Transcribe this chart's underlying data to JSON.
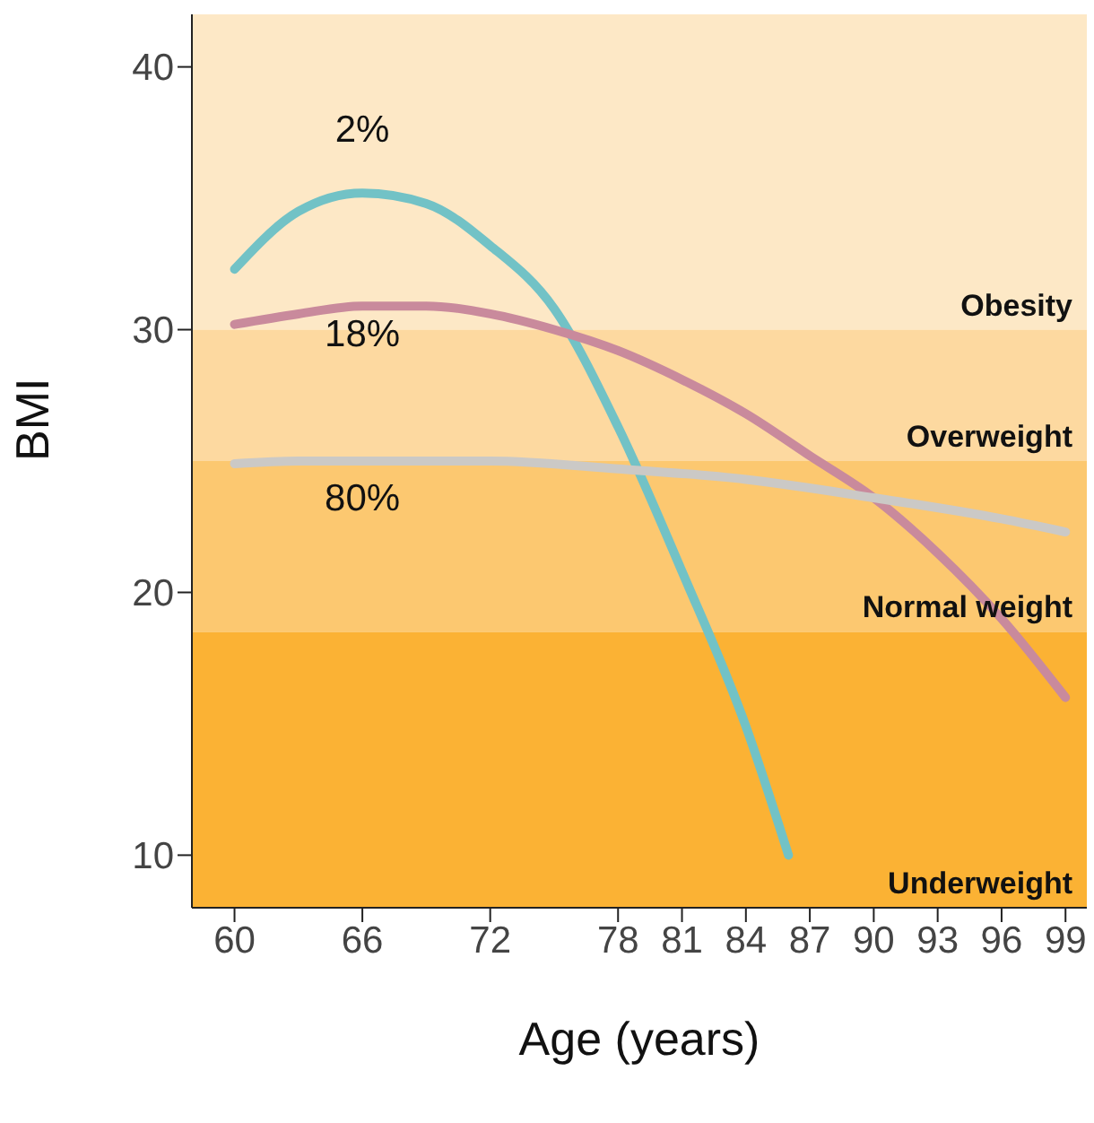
{
  "chart_data": {
    "type": "line",
    "xlabel": "Age (years)",
    "ylabel": "BMI",
    "xlim": [
      58,
      100
    ],
    "xticks": [
      60,
      66,
      72,
      78,
      81,
      84,
      87,
      90,
      93,
      96,
      99
    ],
    "ylim": [
      8,
      42
    ],
    "yticks": [
      10,
      20,
      30,
      40
    ],
    "grid": false,
    "marker": "none",
    "line_style": "solid",
    "series": [
      {
        "name": "2%",
        "color": "#72c2c6",
        "x": [
          60,
          63,
          66,
          69,
          72,
          75,
          78,
          81,
          84,
          86
        ],
        "values": [
          32.3,
          34.5,
          35.2,
          34.8,
          33.2,
          30.8,
          26.3,
          20.8,
          14.9,
          10
        ]
      },
      {
        "name": "18%",
        "color": "#c98a9c",
        "x": [
          60,
          63,
          66,
          69,
          72,
          75,
          78,
          81,
          84,
          87,
          90,
          93,
          96,
          99
        ],
        "values": [
          30.2,
          30.6,
          30.9,
          30.9,
          30.6,
          30.0,
          29.2,
          28.1,
          26.8,
          25.2,
          23.6,
          21.5,
          19.0,
          16.0
        ]
      },
      {
        "name": "80%",
        "color": "#cbc9c6",
        "x": [
          60,
          63,
          66,
          72,
          78,
          84,
          90,
          96,
          99
        ],
        "values": [
          24.9,
          25.0,
          25.0,
          25.0,
          24.7,
          24.3,
          23.6,
          22.8,
          22.3
        ]
      }
    ],
    "bands": [
      {
        "axis": "y",
        "from": 30,
        "to": 42,
        "label": "Obesity",
        "color": "#fde8c6"
      },
      {
        "axis": "y",
        "from": 25,
        "to": 30,
        "label": "Overweight",
        "color": "#fdd9a0"
      },
      {
        "axis": "y",
        "from": 18.5,
        "to": 25,
        "label": "Normal weight",
        "color": "#fcc870"
      },
      {
        "axis": "y",
        "from": 8,
        "to": 18.5,
        "label": "Underweight",
        "color": "#fbb234"
      }
    ]
  }
}
